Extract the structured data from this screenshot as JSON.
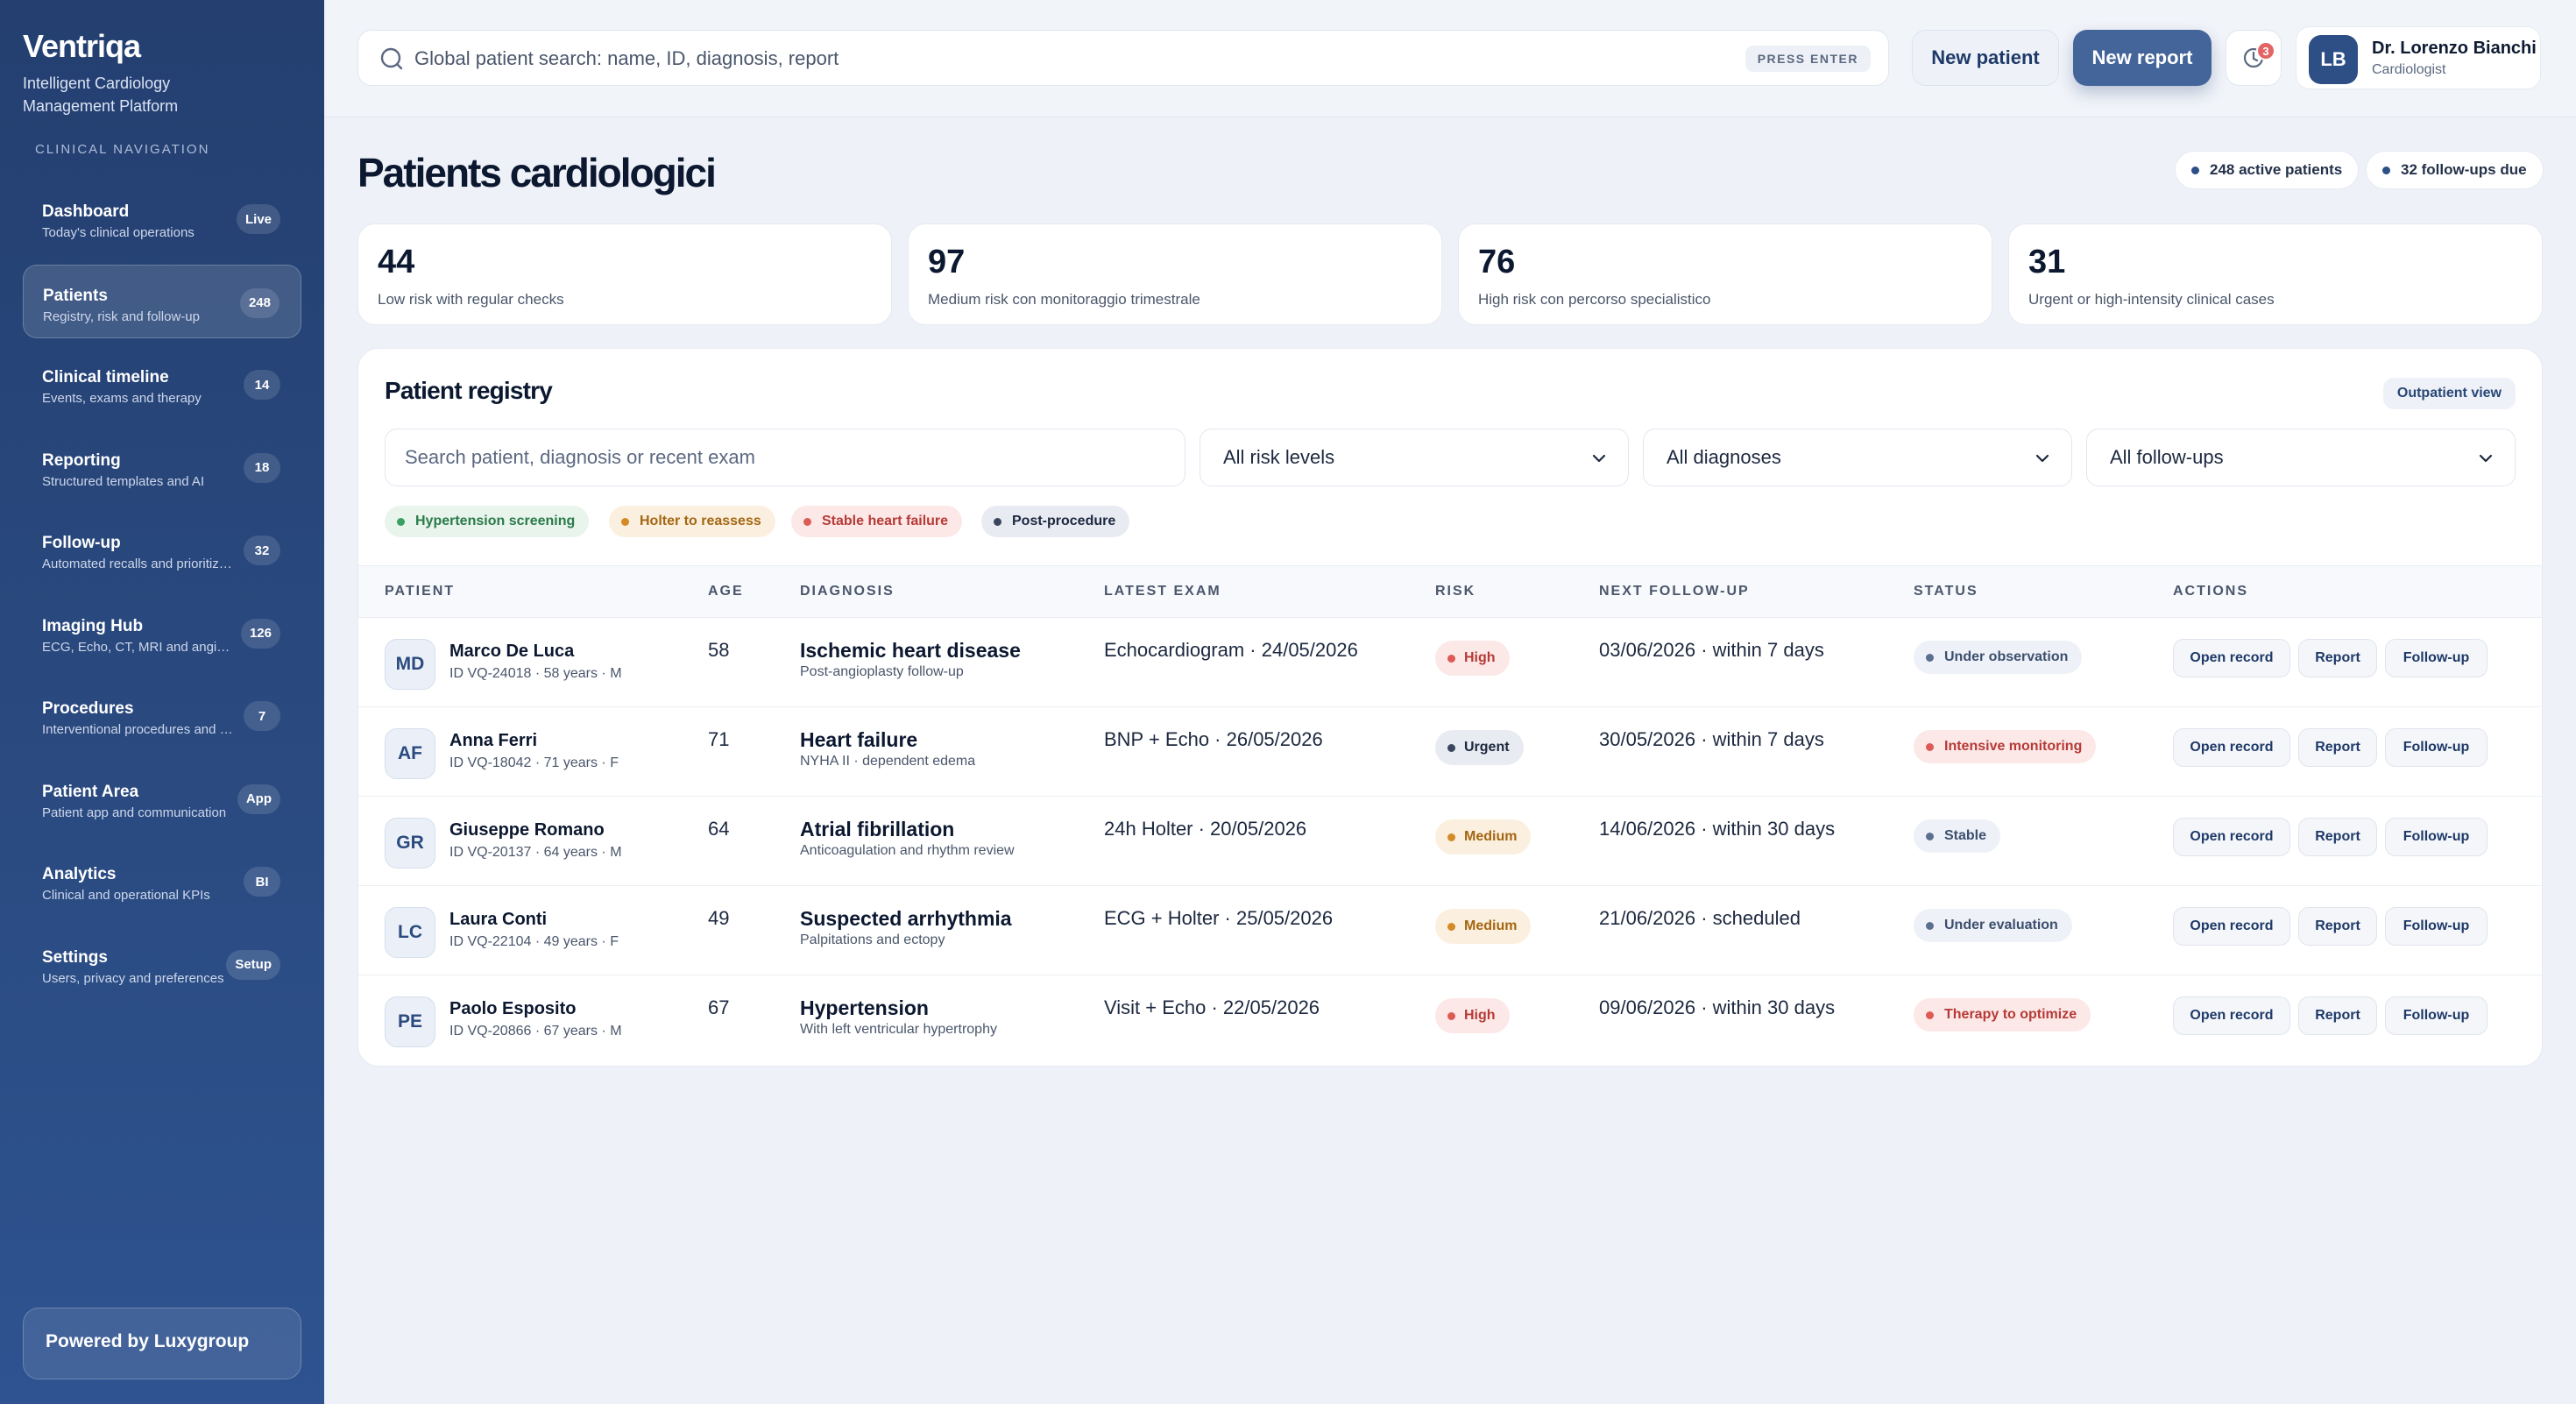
{
  "sidebar": {
    "brand": "Ventriqa",
    "tagline": "Intelligent Cardiology Management Platform",
    "section_label": "CLINICAL NAVIGATION",
    "items": [
      {
        "label": "Dashboard",
        "desc": "Today's clinical operations",
        "badge": "Live"
      },
      {
        "label": "Patients",
        "desc": "Registry, risk and follow-up",
        "badge": "248"
      },
      {
        "label": "Clinical timeline",
        "desc": "Events, exams and therapy",
        "badge": "14"
      },
      {
        "label": "Reporting",
        "desc": "Structured templates and AI",
        "badge": "18"
      },
      {
        "label": "Follow-up",
        "desc": "Automated recalls and prioritization",
        "badge": "32"
      },
      {
        "label": "Imaging Hub",
        "desc": "ECG, Echo, CT, MRI and angiography",
        "badge": "126"
      },
      {
        "label": "Procedures",
        "desc": "Interventional procedures and devices",
        "badge": "7"
      },
      {
        "label": "Patient Area",
        "desc": "Patient app and communication",
        "badge": "App"
      },
      {
        "label": "Analytics",
        "desc": "Clinical and operational KPIs",
        "badge": "BI"
      },
      {
        "label": "Settings",
        "desc": "Users, privacy and preferences",
        "badge": "Setup"
      }
    ],
    "powered_by": "Powered by Luxygroup"
  },
  "topbar": {
    "search_placeholder": "Global patient search: name, ID, diagnosis, report",
    "press_enter": "PRESS ENTER",
    "new_patient": "New patient",
    "new_report": "New report",
    "notification_count": "3",
    "user_initials": "LB",
    "user_name": "Dr. Lorenzo Bianchi",
    "user_role": "Cardiologist"
  },
  "page": {
    "title": "Patients cardiologici",
    "active_patients": "248 active patients",
    "followups_due": "32 follow-ups due"
  },
  "stats": [
    {
      "value": "44",
      "label": "Low risk with regular checks"
    },
    {
      "value": "97",
      "label": "Medium risk con monitoraggio trimestrale"
    },
    {
      "value": "76",
      "label": "High risk con percorso specialistico"
    },
    {
      "value": "31",
      "label": "Urgent or high-intensity clinical cases"
    }
  ],
  "registry": {
    "title": "Patient registry",
    "view_button": "Outpatient view",
    "search_placeholder": "Search patient, diagnosis or recent exam",
    "filters": {
      "risk": "All risk levels",
      "diagnosis": "All diagnoses",
      "followup": "All follow-ups"
    },
    "tags": [
      "Hypertension screening",
      "Holter to reassess",
      "Stable heart failure",
      "Post-procedure"
    ],
    "columns": [
      "PATIENT",
      "AGE",
      "DIAGNOSIS",
      "LATEST EXAM",
      "RISK",
      "NEXT FOLLOW-UP",
      "STATUS",
      "ACTIONS"
    ],
    "actions": {
      "open": "Open record",
      "report": "Report",
      "followup": "Follow-up"
    },
    "rows": [
      {
        "initials": "MD",
        "name": "Marco De Luca",
        "meta": "ID VQ-24018 · 58 years · M",
        "age": "58",
        "diagnosis": "Ischemic heart disease",
        "diagnosis_sub": "Post-angioplasty follow-up",
        "exam": "Echocardiogram · 24/05/2026",
        "risk": "High",
        "followup": "03/06/2026 · within 7 days",
        "status": "Under observation"
      },
      {
        "initials": "AF",
        "name": "Anna Ferri",
        "meta": "ID VQ-18042 · 71 years · F",
        "age": "71",
        "diagnosis": "Heart failure",
        "diagnosis_sub": "NYHA II · dependent edema",
        "exam": "BNP + Echo · 26/05/2026",
        "risk": "Urgent",
        "followup": "30/05/2026 · within 7 days",
        "status": "Intensive monitoring"
      },
      {
        "initials": "GR",
        "name": "Giuseppe Romano",
        "meta": "ID VQ-20137 · 64 years · M",
        "age": "64",
        "diagnosis": "Atrial fibrillation",
        "diagnosis_sub": "Anticoagulation and rhythm review",
        "exam": "24h Holter · 20/05/2026",
        "risk": "Medium",
        "followup": "14/06/2026 · within 30 days",
        "status": "Stable"
      },
      {
        "initials": "LC",
        "name": "Laura Conti",
        "meta": "ID VQ-22104 · 49 years · F",
        "age": "49",
        "diagnosis": "Suspected arrhythmia",
        "diagnosis_sub": "Palpitations and ectopy",
        "exam": "ECG + Holter · 25/05/2026",
        "risk": "Medium",
        "followup": "21/06/2026 · scheduled",
        "status": "Under evaluation"
      },
      {
        "initials": "PE",
        "name": "Paolo Esposito",
        "meta": "ID VQ-20866 · 67 years · M",
        "age": "67",
        "diagnosis": "Hypertension",
        "diagnosis_sub": "With left ventricular hypertrophy",
        "exam": "Visit + Echo · 22/05/2026",
        "risk": "High",
        "followup": "09/06/2026 · within 30 days",
        "status": "Therapy to optimize"
      }
    ]
  },
  "colors": {
    "sidebar": "#243f70",
    "accent": "#44659a",
    "high": "#de5b55",
    "medium": "#d48a26",
    "low": "#3aa064"
  }
}
